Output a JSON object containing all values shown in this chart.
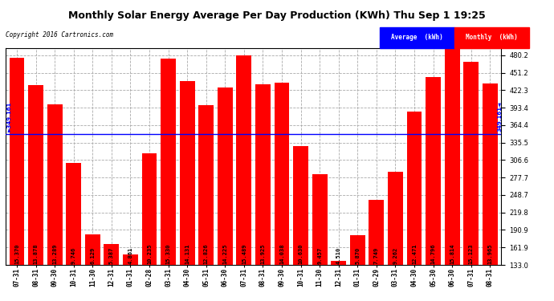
{
  "title": "Monthly Solar Energy Average Per Day Production (KWh) Thu Sep 1 19:25",
  "copyright": "Copyright 2016 Cartronics.com",
  "categories": [
    "07-31",
    "08-31",
    "09-30",
    "10-31",
    "11-30",
    "12-31",
    "01-31",
    "02-28",
    "03-31",
    "04-30",
    "05-31",
    "06-30",
    "07-31",
    "08-31",
    "09-30",
    "10-31",
    "11-30",
    "12-31",
    "01-31",
    "02-29",
    "03-31",
    "04-30",
    "05-30",
    "06-30",
    "07-31",
    "08-31"
  ],
  "values": [
    476.47,
    430.22,
    398.67,
    302.13,
    183.87,
    167.0,
    150.69,
    317.29,
    475.23,
    437.06,
    397.61,
    426.75,
    480.16,
    431.68,
    435.18,
    329.53,
    283.71,
    139.81,
    181.97,
    240.22,
    287.12,
    386.6,
    443.88,
    490.23,
    468.81,
    433.02
  ],
  "bar_labels": [
    "15.370",
    "13.878",
    "13.289",
    "9.746",
    "6.129",
    "5.387",
    "4.861",
    "10.235",
    "15.330",
    "14.131",
    "12.826",
    "14.225",
    "15.489",
    "13.925",
    "14.038",
    "10.630",
    "9.457",
    "4.510",
    "5.870",
    "7.749",
    "9.262",
    "12.471",
    "14.796",
    "15.814",
    "15.123",
    "13.965"
  ],
  "average_value": 349.161,
  "average_label": "349.161",
  "ylim_min": 133.0,
  "ylim_max": 490.0,
  "yticks": [
    133.0,
    161.9,
    190.9,
    219.8,
    248.7,
    277.7,
    306.6,
    335.5,
    364.4,
    393.4,
    422.3,
    451.2,
    480.2
  ],
  "bar_color": "#ff0000",
  "avg_line_color": "#0000ff",
  "background_color": "#ffffff",
  "grid_color": "#aaaaaa",
  "title_color": "#000000",
  "legend_avg_bg": "#0000ff",
  "legend_monthly_bg": "#ff0000"
}
